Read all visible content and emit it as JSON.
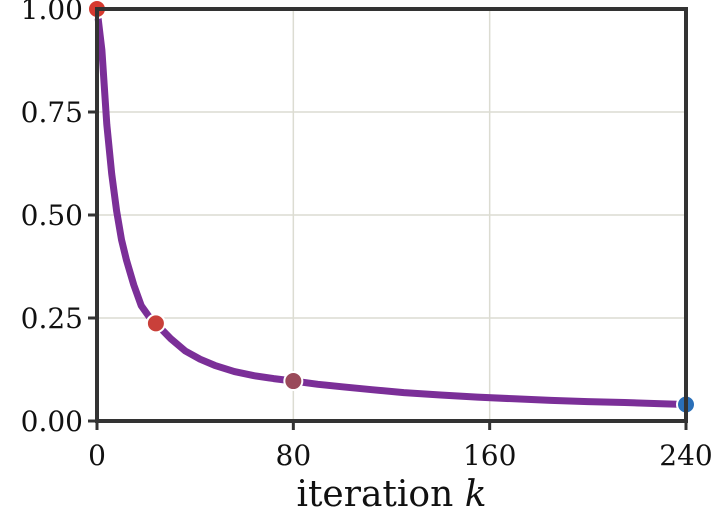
{
  "chart_data": {
    "type": "line",
    "title": "",
    "xlabel": "iteration",
    "xlabel_variable": "k",
    "ylabel": "",
    "xlim": [
      0,
      240
    ],
    "ylim": [
      0,
      1
    ],
    "x_ticks": [
      0,
      80,
      160,
      240
    ],
    "x_tick_labels": [
      "0",
      "80",
      "160",
      "240"
    ],
    "y_ticks": [
      0,
      0.25,
      0.5,
      0.75,
      1
    ],
    "y_tick_labels": [
      "0.00",
      "0.25",
      "0.50",
      "0.75",
      "1.00"
    ],
    "grid": true,
    "series": [
      {
        "color": "#7b2f98",
        "x": [
          0,
          2,
          4,
          6,
          8,
          10,
          12,
          15,
          18,
          21,
          24,
          30,
          36,
          42,
          48,
          56,
          64,
          72,
          80,
          90,
          100,
          112,
          125,
          140,
          155,
          170,
          185,
          200,
          215,
          230,
          240
        ],
        "y": [
          1.0,
          0.9,
          0.72,
          0.6,
          0.51,
          0.44,
          0.39,
          0.33,
          0.28,
          0.255,
          0.237,
          0.2,
          0.17,
          0.15,
          0.135,
          0.12,
          0.11,
          0.103,
          0.097,
          0.089,
          0.083,
          0.076,
          0.069,
          0.063,
          0.058,
          0.054,
          0.05,
          0.047,
          0.045,
          0.042,
          0.04
        ]
      }
    ],
    "markers": [
      {
        "x": 0,
        "y": 1.0,
        "color": "#d63a30"
      },
      {
        "x": 24,
        "y": 0.237,
        "color": "#c9403a"
      },
      {
        "x": 80,
        "y": 0.097,
        "color": "#9a4a5a"
      },
      {
        "x": 240,
        "y": 0.04,
        "color": "#2a6fb8"
      }
    ]
  }
}
